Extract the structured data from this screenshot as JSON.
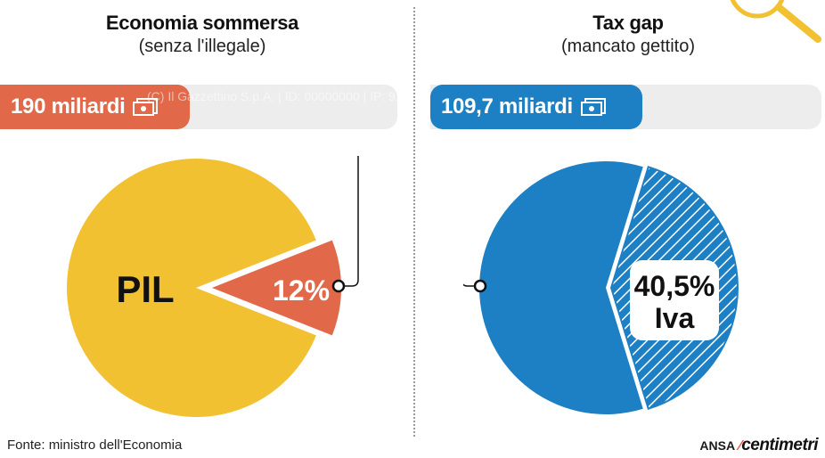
{
  "left": {
    "title": "Economia sommersa",
    "subtitle": "(senza l'illegale)",
    "bar_label": "190 miliardi",
    "color": "#e1694a"
  },
  "right": {
    "title": "Tax gap",
    "subtitle": "(mancato gettito)",
    "bar_label": "109,7 miliardi",
    "color": "#1d7fc4"
  },
  "watermark": "(C) Il Gazzettino S.p.A. | ID: 00000000 | IP: 91.134.164.48",
  "source": "Fonte: ministro dell'Economia",
  "logo": {
    "ansa": "ANSA",
    "centimetri": "centimetri"
  },
  "chart_data": [
    {
      "type": "pie",
      "title": "Economia sommersa",
      "subtitle": "(senza l'illegale)",
      "slices": [
        {
          "label": "PIL",
          "value": 88,
          "color": "#f2c132"
        },
        {
          "label": "12%",
          "value": 12,
          "color": "#e1694a",
          "exploded": true
        }
      ],
      "annotation": "190 miliardi"
    },
    {
      "type": "pie",
      "title": "Tax gap",
      "subtitle": "(mancato gettito)",
      "slices": [
        {
          "label": "",
          "value": 59.5,
          "color": "#1d7fc4"
        },
        {
          "label": "40,5% Iva",
          "value": 40.5,
          "color": "#1d7fc4",
          "pattern": "hatched"
        }
      ],
      "annotation": "109,7 miliardi"
    }
  ]
}
